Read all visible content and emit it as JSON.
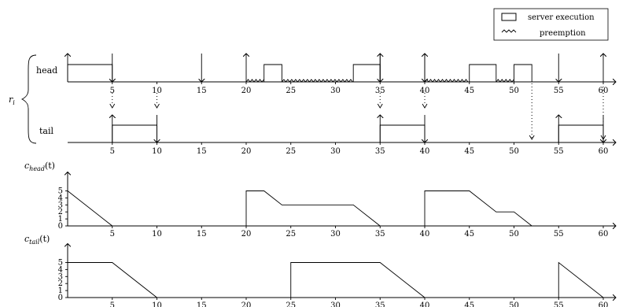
{
  "legend": {
    "execution_label": "server execution",
    "preemption_label": "preemption"
  },
  "task_label": "r",
  "task_label_sub": "i",
  "head_label": "head",
  "tail_label": "tail",
  "chead_label": {
    "main": "c",
    "sub": "head",
    "arg": "(t)"
  },
  "ctail_label": {
    "main": "c",
    "sub": "tail",
    "arg": "(t)"
  },
  "time_ticks": [
    "5",
    "10",
    "15",
    "20",
    "25",
    "30",
    "35",
    "40",
    "45",
    "50",
    "55",
    "60"
  ],
  "budget_ticks": [
    "0",
    "1",
    "2",
    "3",
    "4",
    "5"
  ],
  "chart_data": [
    {
      "type": "line",
      "name": "head budget",
      "x": [
        0,
        5,
        20,
        20,
        22,
        24,
        32,
        35,
        40,
        40,
        45,
        48,
        50,
        52
      ],
      "y": [
        5,
        0,
        0,
        5,
        5,
        3,
        3,
        0,
        0,
        5,
        5,
        2,
        2,
        0
      ],
      "ylim": [
        0,
        5
      ],
      "xlim": [
        0,
        60
      ]
    },
    {
      "type": "line",
      "name": "tail budget",
      "x": [
        0,
        5,
        10,
        25,
        25,
        35,
        40,
        55,
        55,
        60
      ],
      "y": [
        5,
        5,
        0,
        0,
        5,
        5,
        0,
        0,
        5,
        0
      ],
      "ylim": [
        0,
        5
      ],
      "xlim": [
        0,
        60
      ]
    }
  ],
  "schedule": {
    "head_exec": [
      [
        0,
        5
      ],
      [
        22,
        24
      ],
      [
        32,
        35
      ],
      [
        45,
        48
      ],
      [
        50,
        52
      ]
    ],
    "head_preempt": [
      [
        20,
        22
      ],
      [
        24,
        32
      ],
      [
        40,
        45
      ],
      [
        48,
        50
      ]
    ],
    "head_release_up": [
      0,
      20,
      35,
      40,
      60
    ],
    "head_deadline_down": [
      5,
      15,
      35,
      40,
      55
    ],
    "tail_exec": [
      [
        5,
        10
      ],
      [
        35,
        40
      ],
      [
        55,
        60
      ]
    ],
    "tail_release_up": [
      5,
      35,
      55
    ],
    "tail_deadline_down": [
      10,
      40,
      60
    ],
    "dotted_links": [
      5,
      10,
      35,
      40,
      52,
      60
    ]
  }
}
